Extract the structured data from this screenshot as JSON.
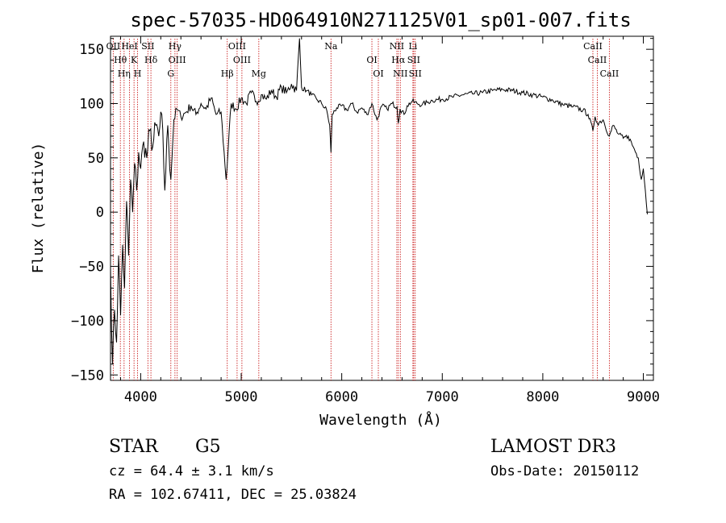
{
  "chart_data": {
    "type": "line",
    "title": "spec-57035-HD064910N271125V01_sp01-007.fits",
    "xlabel": "Wavelength (Å)",
    "ylabel": "Flux (relative)",
    "xlim": [
      3700,
      9100
    ],
    "ylim": [
      -155,
      162
    ],
    "x_ticks": [
      4000,
      5000,
      6000,
      7000,
      8000,
      9000
    ],
    "x_tick_labels": [
      "4000",
      "5000",
      "6000",
      "7000",
      "8000",
      "9000"
    ],
    "y_ticks": [
      -150,
      -100,
      -50,
      0,
      50,
      100,
      150
    ],
    "y_tick_labels": [
      "−150",
      "−100",
      "−50",
      "0",
      "50",
      "100",
      "150"
    ],
    "series": [
      {
        "name": "spectrum",
        "x": [
          3700,
          3720,
          3740,
          3760,
          3780,
          3800,
          3820,
          3840,
          3860,
          3880,
          3900,
          3920,
          3940,
          3960,
          3980,
          4000,
          4030,
          4060,
          4090,
          4120,
          4150,
          4180,
          4210,
          4240,
          4270,
          4300,
          4330,
          4360,
          4400,
          4450,
          4500,
          4550,
          4600,
          4650,
          4700,
          4750,
          4800,
          4850,
          4900,
          4950,
          5000,
          5050,
          5100,
          5150,
          5200,
          5250,
          5300,
          5350,
          5400,
          5450,
          5500,
          5550,
          5580,
          5600,
          5650,
          5700,
          5750,
          5800,
          5850,
          5880,
          5893,
          5905,
          5950,
          6000,
          6050,
          6100,
          6150,
          6200,
          6250,
          6300,
          6350,
          6400,
          6450,
          6500,
          6550,
          6563,
          6580,
          6620,
          6650,
          6700,
          6750,
          6800,
          6850,
          6900,
          7000,
          7100,
          7200,
          7300,
          7400,
          7500,
          7600,
          7700,
          7800,
          7900,
          8000,
          8100,
          8200,
          8300,
          8400,
          8450,
          8498,
          8520,
          8542,
          8600,
          8662,
          8700,
          8750,
          8800,
          8850,
          8900,
          8950,
          8980,
          9000,
          9020,
          9040
        ],
        "y": [
          -50,
          -140,
          -90,
          -120,
          -40,
          -95,
          -30,
          -70,
          10,
          -40,
          30,
          0,
          45,
          20,
          55,
          40,
          65,
          50,
          75,
          60,
          80,
          70,
          90,
          20,
          80,
          30,
          85,
          95,
          88,
          92,
          98,
          90,
          100,
          95,
          105,
          90,
          92,
          30,
          100,
          95,
          105,
          100,
          110,
          102,
          108,
          104,
          112,
          106,
          115,
          110,
          118,
          112,
          160,
          115,
          112,
          108,
          104,
          100,
          94,
          80,
          55,
          90,
          96,
          98,
          94,
          100,
          92,
          96,
          90,
          100,
          85,
          98,
          95,
          100,
          97,
          82,
          95,
          90,
          98,
          102,
          100,
          99,
          101,
          103,
          104,
          106,
          108,
          109,
          110,
          112,
          113,
          112,
          110,
          108,
          106,
          103,
          99,
          97,
          94,
          90,
          75,
          88,
          82,
          85,
          70,
          80,
          72,
          68,
          70,
          60,
          50,
          30,
          40,
          20,
          -2
        ]
      }
    ],
    "spectral_lines": [
      {
        "wavelength": 3727,
        "labels": [
          "OII"
        ]
      },
      {
        "wavelength": 3798,
        "labels": [
          "Hθ"
        ]
      },
      {
        "wavelength": 3835,
        "labels": [
          "Hη"
        ]
      },
      {
        "wavelength": 3889,
        "labels": [
          "HeI"
        ]
      },
      {
        "wavelength": 3934,
        "labels": [
          "K"
        ]
      },
      {
        "wavelength": 3969,
        "labels": [
          "H"
        ]
      },
      {
        "wavelength": 4072,
        "labels": [
          "SII"
        ]
      },
      {
        "wavelength": 4102,
        "labels": [
          "Hδ"
        ]
      },
      {
        "wavelength": 4300,
        "labels": [
          "G"
        ]
      },
      {
        "wavelength": 4341,
        "labels": [
          "Hγ"
        ]
      },
      {
        "wavelength": 4363,
        "labels": [
          "OIII"
        ]
      },
      {
        "wavelength": 4861,
        "labels": [
          "Hβ"
        ]
      },
      {
        "wavelength": 4959,
        "labels": [
          "OIII"
        ]
      },
      {
        "wavelength": 5007,
        "labels": [
          "OIII"
        ]
      },
      {
        "wavelength": 5175,
        "labels": [
          "Mg"
        ]
      },
      {
        "wavelength": 5893,
        "labels": [
          "Na"
        ]
      },
      {
        "wavelength": 6300,
        "labels": [
          "OI"
        ]
      },
      {
        "wavelength": 6364,
        "labels": [
          "OI"
        ]
      },
      {
        "wavelength": 6548,
        "labels": [
          "NII"
        ]
      },
      {
        "wavelength": 6563,
        "labels": [
          "Hα"
        ]
      },
      {
        "wavelength": 6583,
        "labels": [
          "NII"
        ]
      },
      {
        "wavelength": 6708,
        "labels": [
          "Li"
        ]
      },
      {
        "wavelength": 6716,
        "labels": [
          "SII"
        ]
      },
      {
        "wavelength": 6731,
        "labels": [
          "SII"
        ]
      },
      {
        "wavelength": 8498,
        "labels": [
          "CaII"
        ]
      },
      {
        "wavelength": 8542,
        "labels": [
          "CaII"
        ]
      },
      {
        "wavelength": 8662,
        "labels": [
          "CaII"
        ]
      }
    ]
  },
  "info": {
    "object_class": "STAR",
    "subclass": "G5",
    "survey": "LAMOST DR3",
    "cz": "cz = 64.4 ± 3.1 km/s",
    "obs_date": "Obs-Date: 20150112",
    "coords": "RA = 102.67411, DEC =  25.03824"
  }
}
